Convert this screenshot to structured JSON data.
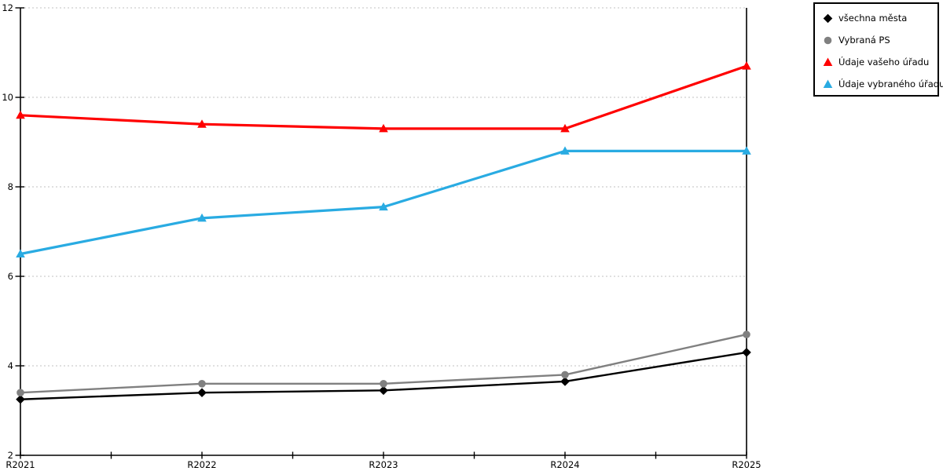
{
  "chart_data": {
    "type": "line",
    "title": "",
    "xlabel": "",
    "ylabel": "",
    "categories": [
      "R2021",
      "R2022",
      "R2023",
      "R2024",
      "R2025"
    ],
    "series": [
      {
        "name": "všechna města",
        "marker": "diamond",
        "color": "#000000",
        "line_width": 2.4,
        "values": [
          3.25,
          3.4,
          3.45,
          3.65,
          4.3
        ]
      },
      {
        "name": "Vybraná PS",
        "marker": "circle",
        "color": "#808080",
        "line_width": 2.4,
        "values": [
          3.4,
          3.6,
          3.6,
          3.8,
          4.7
        ]
      },
      {
        "name": "Údaje vašeho úřadu",
        "marker": "triangle",
        "color": "#ff0000",
        "line_width": 3.2,
        "values": [
          9.6,
          9.4,
          9.3,
          9.3,
          10.7
        ]
      },
      {
        "name": "Údaje vybraného úřadu",
        "marker": "triangle",
        "color": "#29abe2",
        "line_width": 3.2,
        "values": [
          6.5,
          7.3,
          7.55,
          8.8,
          8.8
        ]
      }
    ],
    "ylim": [
      2,
      12
    ],
    "yticks": [
      2,
      4,
      6,
      8,
      10,
      12
    ],
    "x_minor_ticks_between_categories": true,
    "grid": {
      "horizontal": true,
      "style": "dashed",
      "color": "#c0c0c0"
    },
    "axis_color": "#000000",
    "plot_border_right": true,
    "legend": {
      "position": "outside-top-right",
      "border_color": "#000000",
      "background": "#ffffff"
    }
  }
}
